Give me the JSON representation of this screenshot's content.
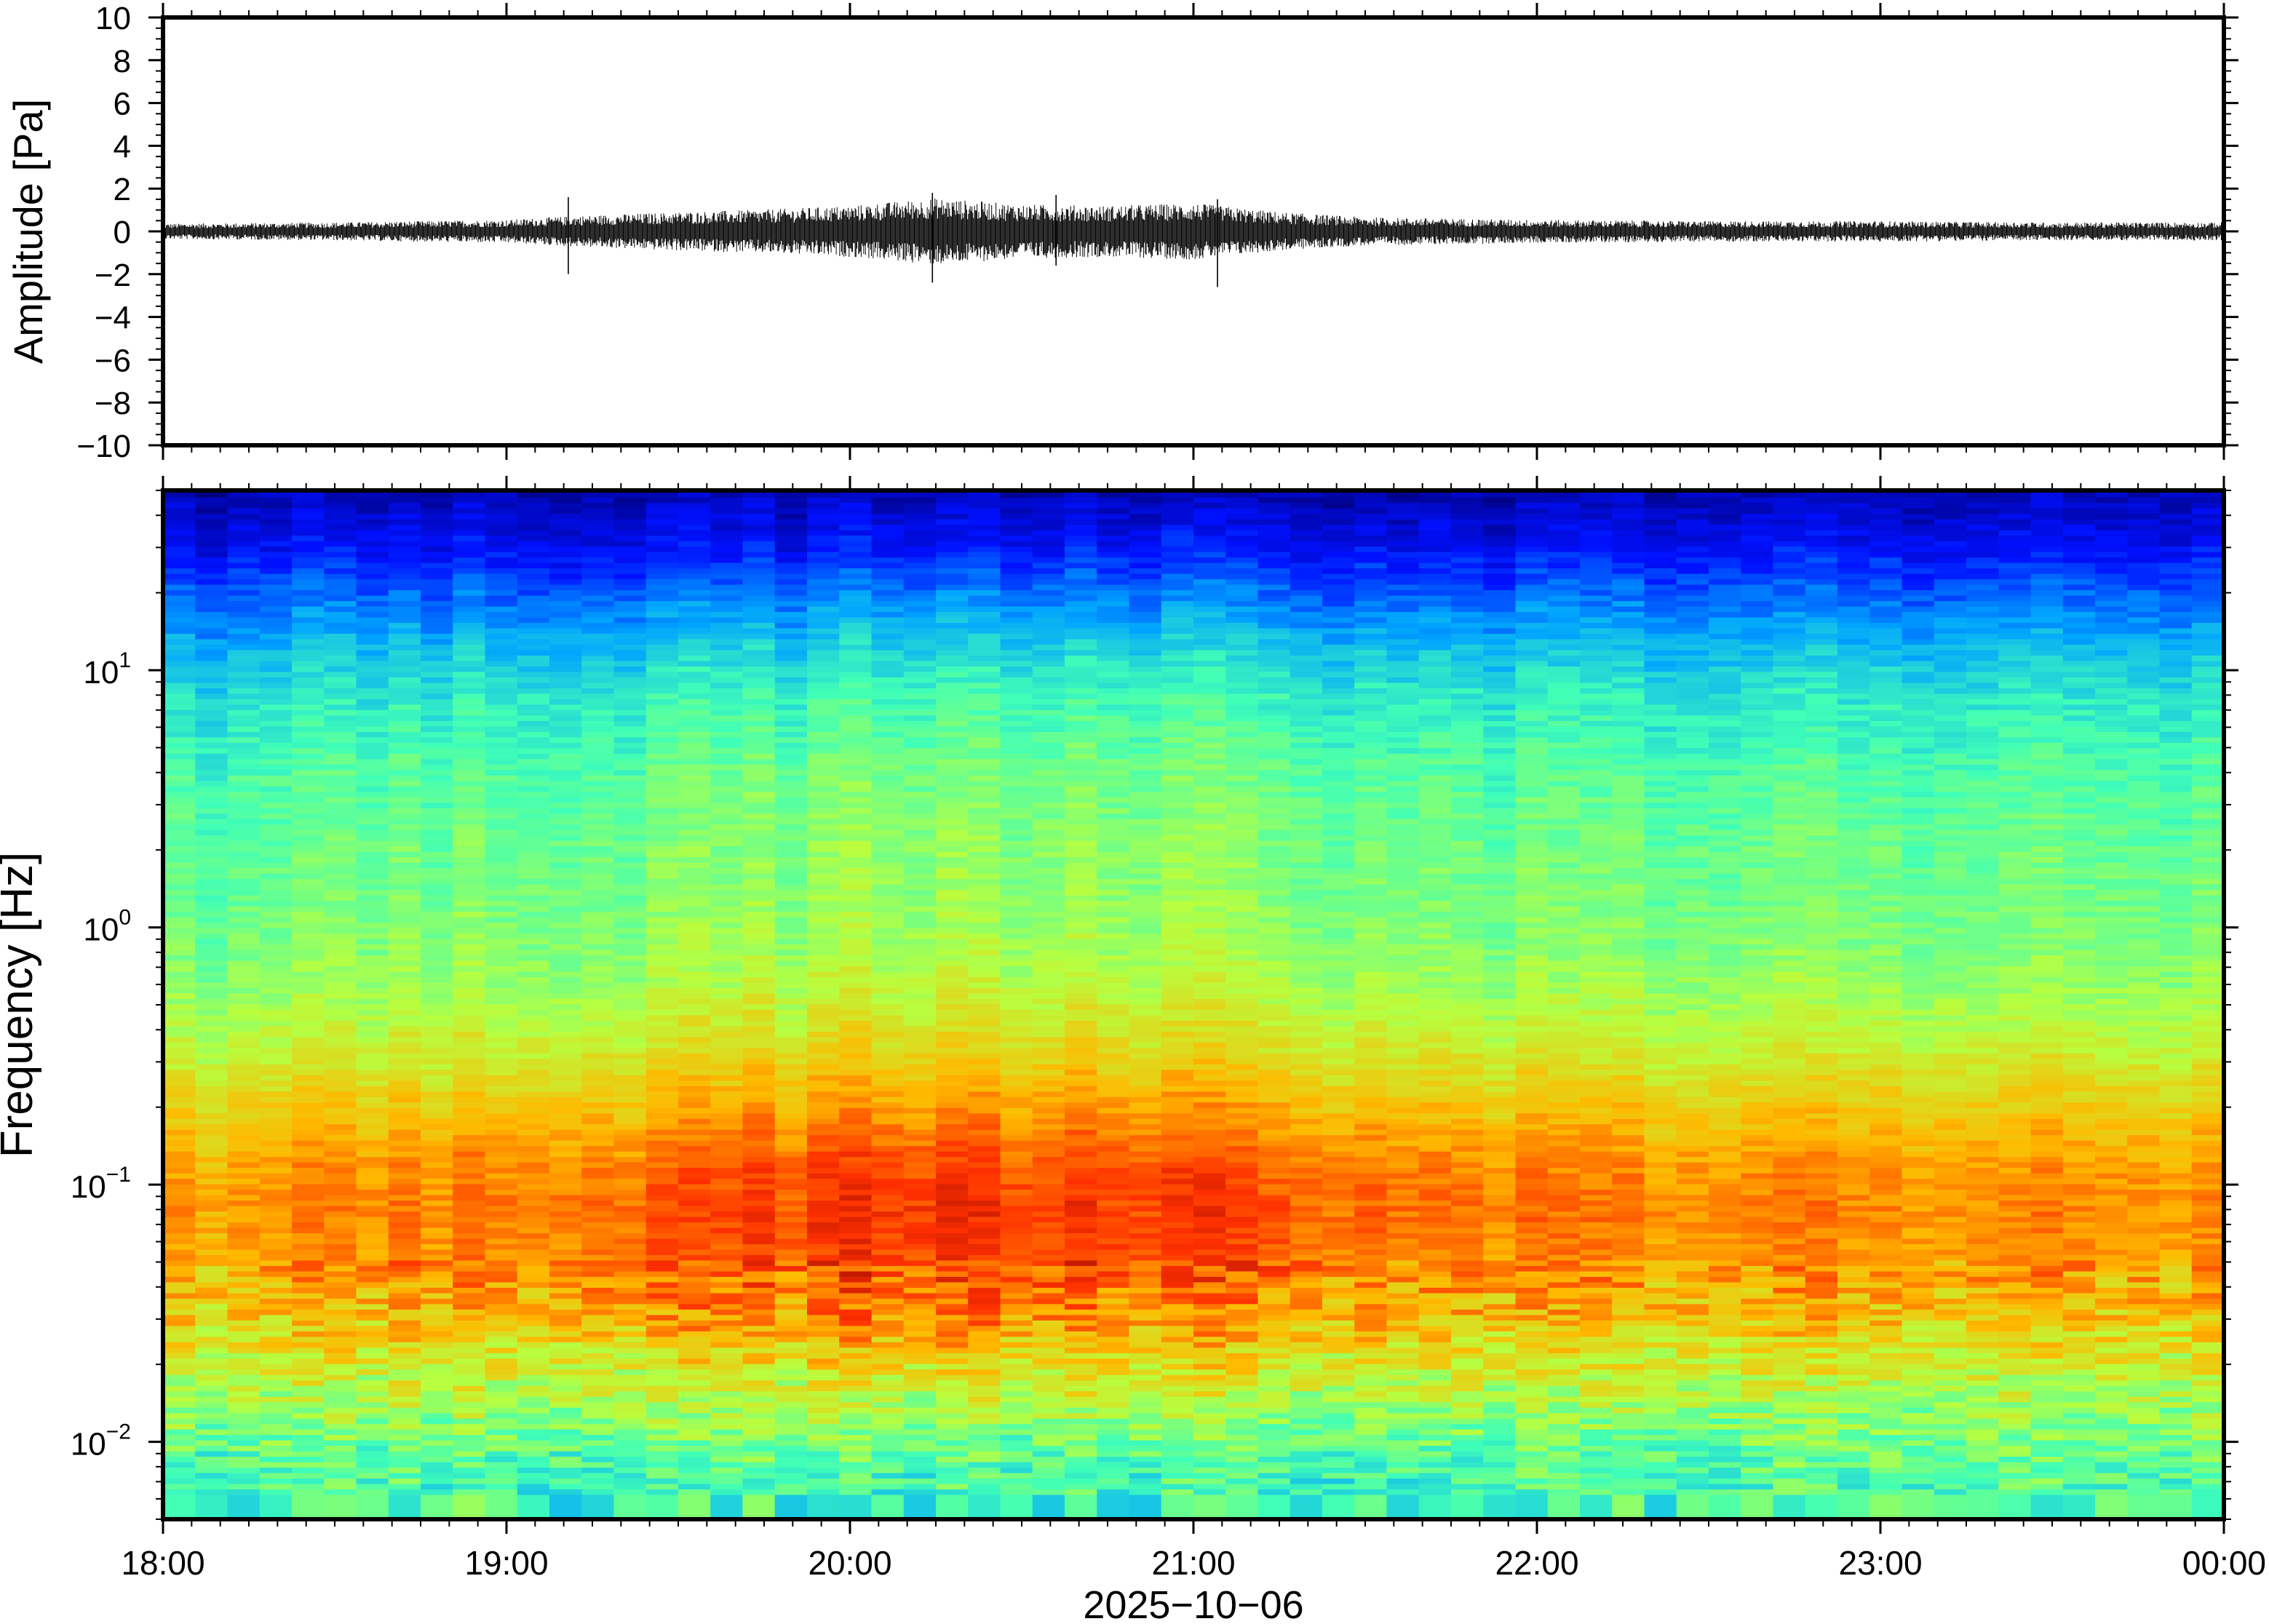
{
  "chart_data": [
    {
      "type": "line",
      "panel": "waveform",
      "ylabel": "Amplitude [Pa]",
      "ylim": [
        -10,
        10
      ],
      "yticks": [
        {
          "value": 10,
          "label": "10"
        },
        {
          "value": 8,
          "label": "8"
        },
        {
          "value": 6,
          "label": "6"
        },
        {
          "value": 4,
          "label": "4"
        },
        {
          "value": 2,
          "label": "2"
        },
        {
          "value": 0,
          "label": "0"
        },
        {
          "value": -2,
          "label": "−2"
        },
        {
          "value": -4,
          "label": "−4"
        },
        {
          "value": -6,
          "label": "−6"
        },
        {
          "value": -8,
          "label": "−8"
        },
        {
          "value": -10,
          "label": "−10"
        }
      ],
      "envelope": {
        "x_hours": [
          18.0,
          18.5,
          19.0,
          19.2,
          19.5,
          19.75,
          20.0,
          20.25,
          20.5,
          20.75,
          21.0,
          21.25,
          21.5,
          22.0,
          22.5,
          23.0,
          23.5,
          24.0
        ],
        "half_amplitude_pa": [
          0.3,
          0.35,
          0.45,
          0.6,
          0.75,
          0.85,
          1.0,
          1.3,
          1.05,
          1.0,
          1.1,
          0.75,
          0.55,
          0.45,
          0.4,
          0.4,
          0.35,
          0.35
        ]
      },
      "peaks": [
        {
          "x_hours": 19.18,
          "max": 1.6,
          "min": -2.0
        },
        {
          "x_hours": 20.24,
          "max": 1.8,
          "min": -2.4
        },
        {
          "x_hours": 20.6,
          "max": 1.7,
          "min": -1.6
        },
        {
          "x_hours": 21.07,
          "max": 1.5,
          "min": -2.6
        }
      ]
    },
    {
      "type": "heatmap",
      "panel": "spectrogram",
      "ylabel": "Frequency [Hz]",
      "yscale": "log",
      "ylim": [
        0.005,
        50
      ],
      "yticks": [
        {
          "value": 10,
          "base": "10",
          "exp": "1"
        },
        {
          "value": 1,
          "base": "10",
          "exp": "0"
        },
        {
          "value": 0.1,
          "base": "10",
          "exp": "−1"
        },
        {
          "value": 0.01,
          "base": "10",
          "exp": "−2"
        }
      ],
      "colormap": [
        "#00007f",
        "#0010ff",
        "#00a4ff",
        "#40ffb7",
        "#b7ff40",
        "#ffb900",
        "#ff3000",
        "#7f0000"
      ],
      "time_activity": {
        "x_hours": [
          18.0,
          18.5,
          19.0,
          19.5,
          20.0,
          20.25,
          20.5,
          21.0,
          21.5,
          22.0,
          22.5,
          23.0,
          23.5,
          24.0
        ],
        "level": [
          0.15,
          0.25,
          0.45,
          0.7,
          0.9,
          1.0,
          0.85,
          0.85,
          0.6,
          0.4,
          0.3,
          0.25,
          0.25,
          0.2
        ]
      },
      "power_profile": {
        "freq_hz": [
          0.005,
          0.008,
          0.012,
          0.02,
          0.03,
          0.05,
          0.08,
          0.12,
          0.2,
          0.35,
          0.6,
          1.0,
          2.0,
          4.0,
          8.0,
          12.0,
          20.0,
          30.0,
          50.0
        ],
        "base_level": [
          0.42,
          0.45,
          0.5,
          0.58,
          0.65,
          0.7,
          0.72,
          0.7,
          0.64,
          0.56,
          0.5,
          0.47,
          0.45,
          0.42,
          0.36,
          0.3,
          0.2,
          0.12,
          0.05
        ],
        "activity_gain": [
          0.0,
          0.0,
          0.03,
          0.08,
          0.12,
          0.15,
          0.15,
          0.14,
          0.12,
          0.1,
          0.09,
          0.08,
          0.08,
          0.08,
          0.08,
          0.07,
          0.05,
          0.03,
          0.01
        ]
      }
    }
  ],
  "xaxis": {
    "xlim": [
      18,
      24
    ],
    "ticks": [
      {
        "value": 18,
        "label": "18:00"
      },
      {
        "value": 19,
        "label": "19:00"
      },
      {
        "value": 20,
        "label": "20:00"
      },
      {
        "value": 21,
        "label": "21:00"
      },
      {
        "value": 22,
        "label": "22:00"
      },
      {
        "value": 23,
        "label": "23:00"
      },
      {
        "value": 24,
        "label": "00:00"
      }
    ],
    "xlabel": "2025−10−06"
  }
}
